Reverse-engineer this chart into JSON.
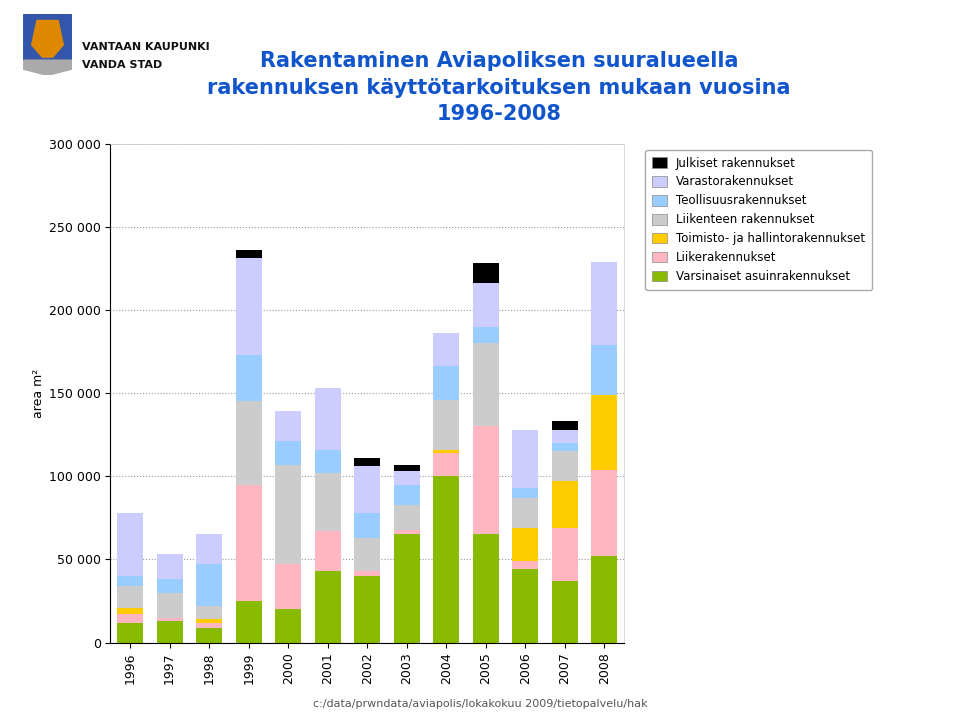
{
  "years": [
    1996,
    1997,
    1998,
    1999,
    2000,
    2001,
    2002,
    2003,
    2004,
    2005,
    2006,
    2007,
    2008
  ],
  "title_line1": "Rakentaminen Aviapoliksen suuralueella",
  "title_line2": "rakennuksen käyttötarkoituksen mukaan vuosina",
  "title_line3": "1996-2008",
  "ylabel": "area m²",
  "footer": "c:/data/prwndata/aviapolis/lokakokuu 2009/tietopalvelu/hak",
  "legend_labels": [
    "Julkiset rakennukset",
    "Varastorakennukset",
    "Teollisuusrakennukset",
    "Liikenteen rakennukset",
    "Toimisto- ja hallintorakennukset",
    "Liikerakennukset",
    "Varsinaiset asuinrakennukset"
  ],
  "colors": [
    "#000000",
    "#ccccff",
    "#99ccff",
    "#cccccc",
    "#ffcc00",
    "#ffb6c1",
    "#88bb00"
  ],
  "data": {
    "Varsinaiset_asuinrakennukset": [
      12000,
      13000,
      9000,
      25000,
      20000,
      43000,
      40000,
      65000,
      100000,
      65000,
      44000,
      37000,
      52000
    ],
    "Liikerakennukset": [
      5000,
      2000,
      3000,
      70000,
      27000,
      24000,
      3000,
      3000,
      14000,
      65000,
      5000,
      32000,
      52000
    ],
    "Toimisto_ja_hallinto": [
      4000,
      0,
      2000,
      0,
      0,
      0,
      0,
      0,
      2000,
      0,
      20000,
      28000,
      45000
    ],
    "Liikenteen_rakennukset": [
      13000,
      15000,
      8000,
      50000,
      60000,
      35000,
      20000,
      15000,
      30000,
      50000,
      18000,
      18000,
      0
    ],
    "Teollisuusrakennukset": [
      6000,
      8000,
      25000,
      28000,
      14000,
      14000,
      15000,
      12000,
      20000,
      10000,
      6000,
      5000,
      30000
    ],
    "Varastorakennukset": [
      38000,
      15000,
      18000,
      58000,
      18000,
      37000,
      28000,
      8000,
      20000,
      26000,
      35000,
      8000,
      50000
    ],
    "Julkiset_rakennukset": [
      0,
      0,
      0,
      5000,
      0,
      0,
      5000,
      4000,
      0,
      12000,
      0,
      5000,
      0
    ]
  },
  "ylim": [
    0,
    300000
  ],
  "yticks": [
    0,
    50000,
    100000,
    150000,
    200000,
    250000,
    300000
  ],
  "ytick_labels": [
    "0",
    "50 000",
    "100 000",
    "150 000",
    "200 000",
    "250 000",
    "300 000"
  ],
  "title_color": "#1155cc",
  "background_color": "#ffffff",
  "logo_text1": "VANTAAN KAUPUNKI",
  "logo_text2": "VANDA STAD"
}
